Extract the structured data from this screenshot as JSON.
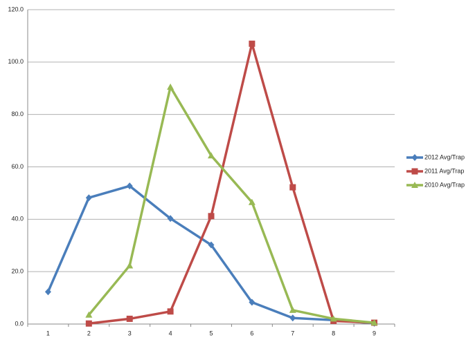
{
  "chart_data": {
    "type": "line",
    "categories": [
      "1",
      "2",
      "3",
      "4",
      "5",
      "6",
      "7",
      "8",
      "9"
    ],
    "series": [
      {
        "name": "2012 Avg/Trap",
        "color": "#4a7ebb",
        "marker": "diamond",
        "values": [
          12.3,
          48.2,
          52.7,
          40.3,
          30.2,
          8.3,
          2.3,
          1.5,
          0.3
        ]
      },
      {
        "name": "2011 Avg/Trap",
        "color": "#be4b48",
        "marker": "square",
        "values": [
          null,
          0.2,
          2.0,
          4.8,
          41.2,
          107.0,
          52.2,
          1.2,
          0.5
        ]
      },
      {
        "name": "2010 Avg/Trap",
        "color": "#98b954",
        "marker": "triangle",
        "values": [
          null,
          3.5,
          22.3,
          90.5,
          64.3,
          46.5,
          5.3,
          2.0,
          0.5
        ]
      }
    ],
    "ylim": [
      0,
      120
    ],
    "yticks": [
      {
        "value": 0,
        "label": "0.0"
      },
      {
        "value": 20,
        "label": "20.0"
      },
      {
        "value": 40,
        "label": "40.0"
      },
      {
        "value": 60,
        "label": "60.0"
      },
      {
        "value": 80,
        "label": "80.0"
      },
      {
        "value": 100,
        "label": "100.0"
      },
      {
        "value": 120,
        "label": "120.0"
      }
    ],
    "grid": true,
    "legend": "right"
  }
}
